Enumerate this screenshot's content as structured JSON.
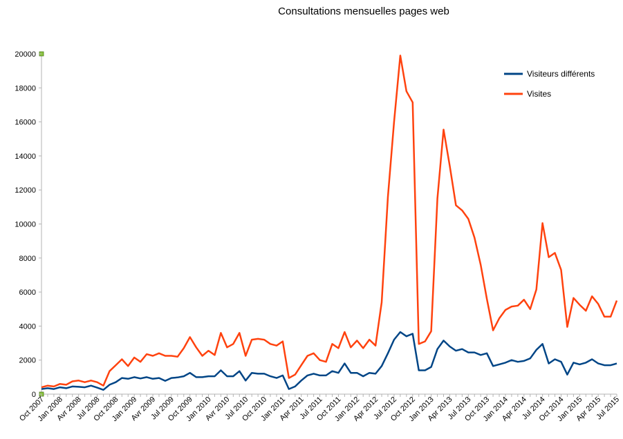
{
  "chart_data": {
    "type": "line",
    "title": "Consultations mensuelles pages web",
    "xlabel": "",
    "ylabel": "",
    "ylim": [
      0,
      20000
    ],
    "yticks": [
      0,
      2000,
      4000,
      6000,
      8000,
      10000,
      12000,
      14000,
      16000,
      18000,
      20000
    ],
    "xtick_labels": [
      "Oct 2007",
      "Jan 2008",
      "Avr 2008",
      "Jul 2008",
      "Oct 2008",
      "Jan 2009",
      "Avr 2009",
      "Jul 2009",
      "Oct 2009",
      "Jan 2010",
      "Avr 2010",
      "Jul 2010",
      "Oct 2010",
      "Jan 2011",
      "Apr 2011",
      "Jul 2011",
      "Oct 2011",
      "Jan 2012",
      "Apr 2012",
      "Jul 2012",
      "Oct 2012",
      "Jan 2013",
      "Apr 2013",
      "Jul 2013",
      "Oct 2013",
      "Jan 2014",
      "Apr 2014",
      "Jul 2014",
      "Oct 2014",
      "Jan 2015",
      "Apr 2015",
      "Jul 2015"
    ],
    "grid": false,
    "legend_position": "top-right",
    "series": [
      {
        "name": "Visiteurs différents",
        "color": "#004586",
        "values": [
          300,
          350,
          300,
          400,
          350,
          450,
          430,
          400,
          500,
          380,
          250,
          550,
          700,
          950,
          900,
          1000,
          920,
          1000,
          900,
          950,
          780,
          950,
          980,
          1050,
          1250,
          1000,
          1000,
          1050,
          1050,
          1400,
          1050,
          1050,
          1350,
          800,
          1250,
          1200,
          1200,
          1050,
          950,
          1100,
          300,
          450,
          800,
          1100,
          1200,
          1100,
          1100,
          1350,
          1250,
          1800,
          1250,
          1250,
          1050,
          1250,
          1200,
          1650,
          2400,
          3200,
          3650,
          3400,
          3550,
          1400,
          1400,
          1600,
          2650,
          3150,
          2800,
          2550,
          2650,
          2450,
          2450,
          2300,
          2400,
          1650,
          1750,
          1850,
          2000,
          1900,
          1950,
          2100,
          2600,
          2950,
          1800,
          2050,
          1900,
          1150,
          1850,
          1750,
          1850,
          2050,
          1800,
          1700,
          1700,
          1800
        ]
      },
      {
        "name": "Visites",
        "color": "#ff420e",
        "values": [
          400,
          500,
          450,
          600,
          550,
          750,
          800,
          700,
          800,
          700,
          500,
          1350,
          1700,
          2050,
          1650,
          2150,
          1900,
          2350,
          2250,
          2400,
          2250,
          2250,
          2200,
          2700,
          3350,
          2750,
          2250,
          2550,
          2300,
          3600,
          2750,
          2950,
          3600,
          2250,
          3200,
          3250,
          3200,
          2950,
          2850,
          3100,
          950,
          1150,
          1700,
          2250,
          2400,
          2000,
          1900,
          2950,
          2700,
          3650,
          2750,
          3150,
          2700,
          3200,
          2850,
          5400,
          11600,
          16000,
          19900,
          17800,
          17150,
          2950,
          3100,
          3700,
          11500,
          15550,
          13400,
          11100,
          10800,
          10300,
          9200,
          7600,
          5600,
          3750,
          4450,
          4950,
          5150,
          5200,
          5550,
          5000,
          6150,
          10050,
          8050,
          8300,
          7300,
          3950,
          5650,
          5250,
          4900,
          5750,
          5300,
          4550,
          4550,
          5500
        ]
      }
    ]
  }
}
